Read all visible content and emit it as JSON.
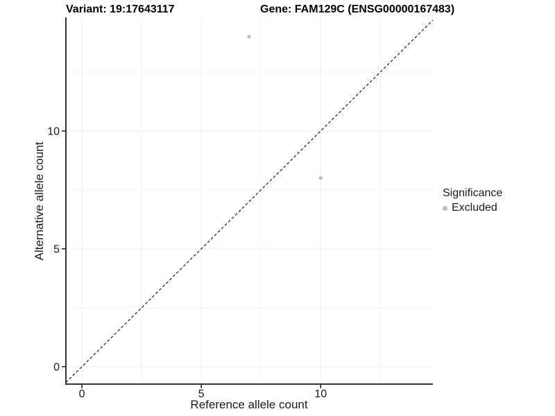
{
  "titles": {
    "variant": "Variant: 19:17643117",
    "gene": "Gene: FAM129C (ENSG00000167483)"
  },
  "legend": {
    "title": "Significance",
    "items": [
      {
        "label": "Excluded",
        "color": "#bdbdbd"
      }
    ]
  },
  "colors": {
    "background": "#ffffff",
    "axis_line": "#333333",
    "tick_mark": "#1a1a1a",
    "grid_major": "#ececec",
    "grid_minor": "#f4f4f4",
    "reference_line": "#1a1a1a",
    "point": "#bdbdbd",
    "text": "#1a1a1a"
  },
  "chart_data": {
    "type": "scatter",
    "title": "Variant: 19:17643117  |  Gene: FAM129C (ENSG00000167483)",
    "xlabel": "Reference allele count",
    "ylabel": "Alternative allele count",
    "xlim": [
      -0.67,
      14.7
    ],
    "ylim": [
      -0.74,
      14.82
    ],
    "x_major_ticks": [
      0,
      5,
      10
    ],
    "y_major_ticks": [
      0,
      5,
      10
    ],
    "x_minor_gridlines": [
      2.5,
      7.5,
      12.5
    ],
    "y_minor_gridlines": [
      2.5,
      7.5,
      12.5
    ],
    "grid": true,
    "legend_position": "right",
    "series": [
      {
        "name": "Excluded",
        "color": "#bdbdbd",
        "points": [
          [
            7,
            14
          ],
          [
            10,
            8
          ]
        ]
      }
    ],
    "reference_line": {
      "kind": "identity",
      "style": "dashed",
      "slope": 1,
      "intercept": 0
    }
  }
}
